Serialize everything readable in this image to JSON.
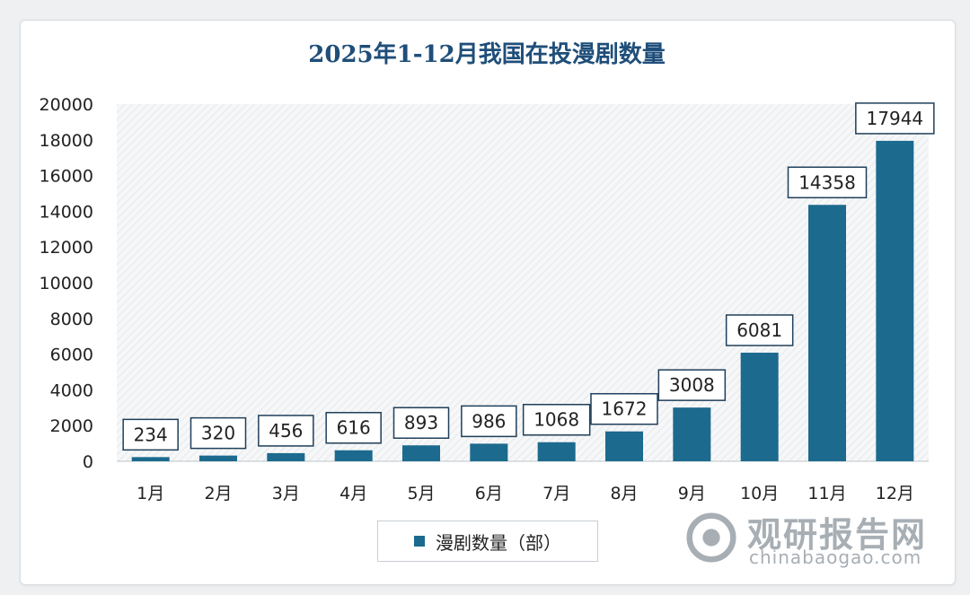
{
  "chart_data": {
    "type": "bar",
    "title": "2025年1-12月我国在投漫剧数量",
    "categories": [
      "1月",
      "2月",
      "3月",
      "4月",
      "5月",
      "6月",
      "7月",
      "8月",
      "9月",
      "10月",
      "11月",
      "12月"
    ],
    "series": [
      {
        "name": "漫剧数量（部）",
        "values": [
          234,
          320,
          456,
          616,
          893,
          986,
          1068,
          1672,
          3008,
          6081,
          14358,
          17944
        ]
      }
    ],
    "yticks": [
      "0",
      "2000",
      "4000",
      "6000",
      "8000",
      "10000",
      "12000",
      "14000",
      "16000",
      "18000",
      "20000"
    ],
    "ylim": [
      0,
      20000
    ],
    "grid": false,
    "legend": "bottom",
    "colors": {
      "bar": "#1c6a8e",
      "title": "#1f4e79"
    }
  },
  "watermark": {
    "brand": "观研报告网",
    "url": "chinabaogao.com"
  }
}
